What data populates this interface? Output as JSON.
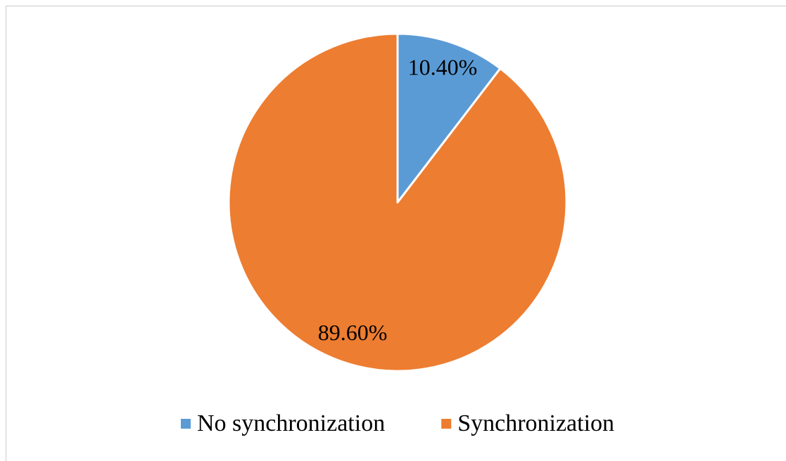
{
  "chart_data": {
    "type": "pie",
    "categories": [
      "No synchronization",
      "Synchronization"
    ],
    "values": [
      10.4,
      89.6
    ],
    "value_labels": [
      "10.40%",
      "89.60%"
    ],
    "colors": [
      "#5b9bd5",
      "#ed7d31"
    ],
    "legend": "bottom"
  }
}
